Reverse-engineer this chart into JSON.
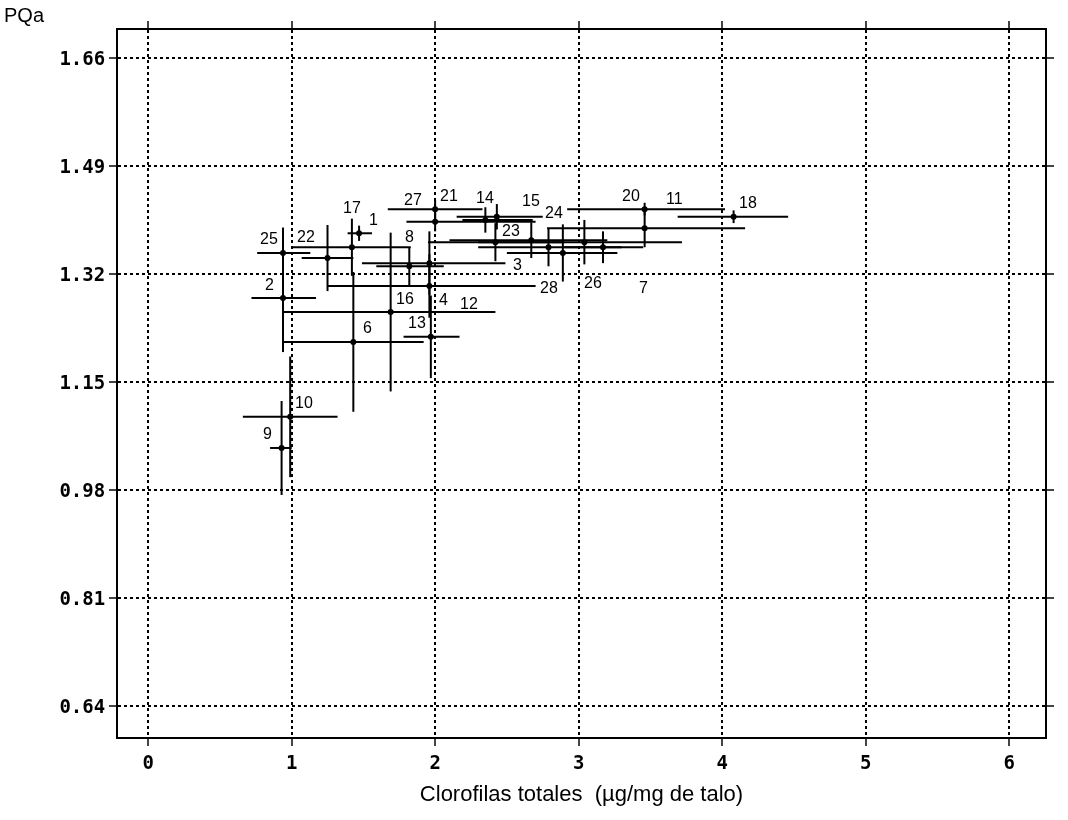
{
  "chart_data": {
    "type": "scatter",
    "xlabel": "Clorofilas totales  (µg/mg de talo)",
    "ylabel": "PQa",
    "x": [
      1.47,
      0.94,
      2.42,
      1.96,
      1.43,
      3.17,
      1.82,
      0.93,
      0.99,
      3.46,
      1.96,
      1.97,
      2.35,
      2.67,
      1.69,
      1.42,
      4.08,
      3.46,
      2.0,
      1.25,
      2.43,
      3.04,
      0.94,
      2.89,
      2.0,
      2.79
    ],
    "values": [
      1.384,
      1.282,
      1.37,
      1.301,
      1.213,
      1.362,
      1.332,
      1.046,
      1.095,
      1.392,
      1.337,
      1.221,
      1.405,
      1.373,
      1.26,
      1.362,
      1.41,
      1.422,
      1.422,
      1.345,
      1.41,
      1.37,
      1.353,
      1.353,
      1.402,
      1.362
    ],
    "errors": [
      0.012,
      0.085,
      0.03,
      0.05,
      0.11,
      0.025,
      0.03,
      0.074,
      0.095,
      0.03,
      0.05,
      0.065,
      0.02,
      0.028,
      0.125,
      0.045,
      0.01,
      0.01,
      0.015,
      0.052,
      0.02,
      0.035,
      0.04,
      0.045,
      0.015,
      0.03
    ],
    "xerrors": [
      [
        1.39,
        1.56
      ],
      [
        0.72,
        1.17
      ],
      [
        1.95,
        2.9
      ],
      [
        1.25,
        2.7
      ],
      [
        0.94,
        1.92
      ],
      [
        2.9,
        3.45
      ],
      [
        1.59,
        2.06
      ],
      [
        0.85,
        1.0
      ],
      [
        0.66,
        1.32
      ],
      [
        2.78,
        4.16
      ],
      [
        1.49,
        2.49
      ],
      [
        1.78,
        2.17
      ],
      [
        2.19,
        2.68
      ],
      [
        2.1,
        3.2
      ],
      [
        0.94,
        2.42
      ],
      [
        1.0,
        1.83
      ],
      [
        3.69,
        4.46
      ],
      [
        2.92,
        4.02
      ],
      [
        1.67,
        2.33
      ],
      [
        1.07,
        1.43
      ],
      [
        2.15,
        2.75
      ],
      [
        2.3,
        3.72
      ],
      [
        0.76,
        1.13
      ],
      [
        2.5,
        3.27
      ],
      [
        1.8,
        2.7
      ],
      [
        2.3,
        3.3
      ]
    ],
    "annotations": [
      {
        "text": "1",
        "x": 1.47,
        "y": 1.384
      },
      {
        "text": "2",
        "x": 0.94,
        "y": 1.282
      },
      {
        "text": "3",
        "x": 2.42,
        "y": 1.37
      },
      {
        "text": "4",
        "x": 1.96,
        "y": 1.301
      },
      {
        "text": "6",
        "x": 1.43,
        "y": 1.213
      },
      {
        "text": "7",
        "x": 3.17,
        "y": 1.362
      },
      {
        "text": "8",
        "x": 1.82,
        "y": 1.332
      },
      {
        "text": "9",
        "x": 0.93,
        "y": 1.046
      },
      {
        "text": "10",
        "x": 0.99,
        "y": 1.095
      },
      {
        "text": "11",
        "x": 3.46,
        "y": 1.392
      },
      {
        "text": "12",
        "x": 1.96,
        "y": 1.337
      },
      {
        "text": "13",
        "x": 1.97,
        "y": 1.221
      },
      {
        "text": "14",
        "x": 2.35,
        "y": 1.405
      },
      {
        "text": "15",
        "x": 2.67,
        "y": 1.373
      },
      {
        "text": "16",
        "x": 1.69,
        "y": 1.26
      },
      {
        "text": "17",
        "x": 1.42,
        "y": 1.362
      },
      {
        "text": "18",
        "x": 4.08,
        "y": 1.41
      },
      {
        "text": "20",
        "x": 3.46,
        "y": 1.422
      },
      {
        "text": "21",
        "x": 2.0,
        "y": 1.422
      },
      {
        "text": "22",
        "x": 1.25,
        "y": 1.345
      },
      {
        "text": "23",
        "x": 2.43,
        "y": 1.41
      },
      {
        "text": "24",
        "x": 3.04,
        "y": 1.37
      },
      {
        "text": "25",
        "x": 0.94,
        "y": 1.353
      },
      {
        "text": "26",
        "x": 2.89,
        "y": 1.353
      },
      {
        "text": "27",
        "x": 2.0,
        "y": 1.402
      },
      {
        "text": "28",
        "x": 2.79,
        "y": 1.362
      }
    ],
    "color": "#000000",
    "marker": "circle",
    "grid": true,
    "xlim": [
      -0.21,
      6.25
    ],
    "xticks": [
      0,
      1,
      2,
      3,
      4,
      5,
      6
    ],
    "ylim": [
      0.591,
      1.704
    ],
    "yticks": [
      0.64,
      0.81,
      0.98,
      1.15,
      1.32,
      1.49,
      1.66
    ]
  }
}
